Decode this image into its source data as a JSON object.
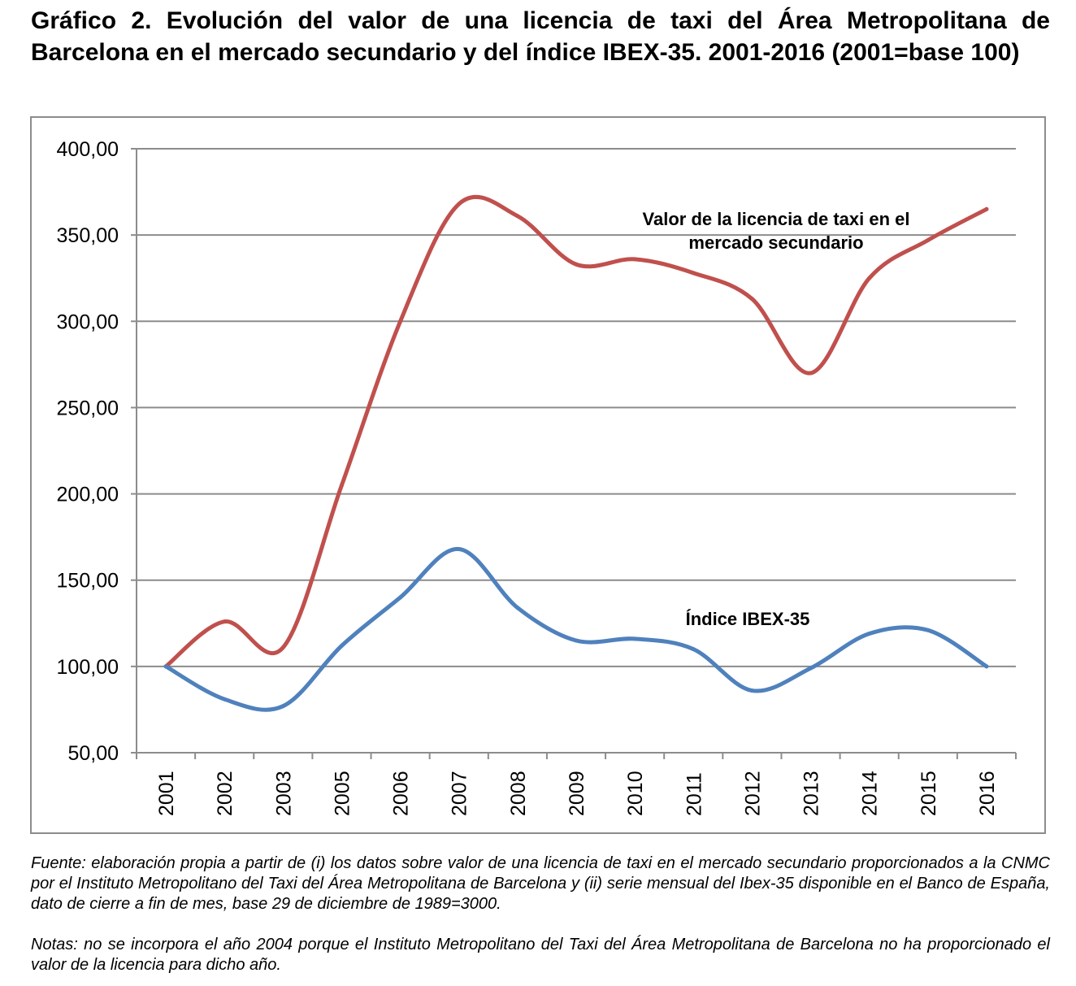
{
  "title": "Gráfico 2. Evolución del valor de una licencia de taxi del Área Metropolitana de Barcelona en el mercado secundario y del índice IBEX-35. 2001-2016 (2001=base 100)",
  "source_text": "Fuente: elaboración propia a partir de (i) los datos sobre valor de una licencia de taxi en el mercado secundario proporcionados a la CNMC por el Instituto Metropolitano del Taxi del Área Metropolitana de Barcelona y (ii) serie mensual del Ibex-35 disponible en el Banco de España, dato de cierre a fin de mes, base 29 de diciembre de 1989=3000.",
  "notes_text": "Notas: no se incorpora el año 2004 porque el Instituto Metropolitano del Taxi del Área Metropolitana de Barcelona no ha proporcionado el valor de la licencia para dicho año.",
  "chart_data": {
    "type": "line",
    "categories": [
      "2001",
      "2002",
      "2003",
      "2005",
      "2006",
      "2007",
      "2008",
      "2009",
      "2010",
      "2011",
      "2012",
      "2013",
      "2014",
      "2015",
      "2016"
    ],
    "ylim": [
      50,
      400
    ],
    "yticks": [
      "50,00",
      "100,00",
      "150,00",
      "200,00",
      "250,00",
      "300,00",
      "350,00",
      "400,00"
    ],
    "grid": true,
    "series": [
      {
        "name": "Valor de la licencia de taxi en el mercado secundario",
        "label_lines": [
          "Valor de la licencia de taxi en el",
          "mercado secundario"
        ],
        "color": "#c0504d",
        "values": [
          100,
          126,
          111,
          205,
          300,
          368,
          361,
          333,
          336,
          328,
          313,
          270,
          325,
          347,
          365
        ]
      },
      {
        "name": "Índice IBEX-35",
        "label_lines": [
          "Índice IBEX-35"
        ],
        "color": "#4f81bd",
        "values": [
          100,
          81,
          77,
          112,
          140,
          168,
          134,
          115,
          116,
          110,
          86,
          99,
          119,
          121,
          100
        ]
      }
    ]
  }
}
